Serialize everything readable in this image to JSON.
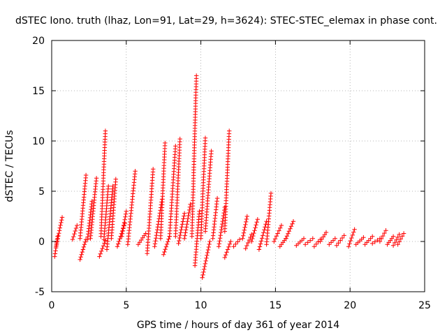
{
  "chart_data": {
    "type": "scatter",
    "title": "dSTEC Iono. truth (lhaz, Lon=91, Lat=29, h=3624): STEC-STEC_elemax in phase cont.",
    "xlabel": "GPS time / hours of day 361 of year 2014",
    "ylabel": "dSTEC  / TECUs",
    "xlim": [
      0,
      25
    ],
    "ylim": [
      -5,
      20
    ],
    "x_ticks": [
      0,
      5,
      10,
      15,
      20,
      25
    ],
    "y_ticks": [
      -5,
      0,
      5,
      10,
      15,
      20
    ],
    "x_tick_labels": [
      "0",
      "5",
      "10",
      "15",
      "20",
      "25"
    ],
    "y_tick_labels": [
      "-5",
      "0",
      "5",
      "10",
      "15",
      "20"
    ],
    "grid": true,
    "marker": "+",
    "color": "#ff0000",
    "arcs": [
      {
        "x": [
          0.2,
          0.4
        ],
        "y": [
          -1.5,
          0.5
        ]
      },
      {
        "x": [
          0.3,
          0.7
        ],
        "y": [
          -0.5,
          2.4
        ]
      },
      {
        "x": [
          1.4,
          1.7
        ],
        "y": [
          0.2,
          1.6
        ]
      },
      {
        "x": [
          1.9,
          2.3
        ],
        "y": [
          -1.8,
          0.2
        ]
      },
      {
        "x": [
          1.9,
          2.3
        ],
        "y": [
          0.3,
          6.6
        ]
      },
      {
        "x": [
          2.4,
          2.7
        ],
        "y": [
          0.2,
          4.0
        ]
      },
      {
        "x": [
          2.6,
          3.0
        ],
        "y": [
          0.3,
          6.3
        ]
      },
      {
        "x": [
          3.2,
          3.6
        ],
        "y": [
          -1.5,
          0.1
        ]
      },
      {
        "x": [
          3.3,
          3.6
        ],
        "y": [
          0.5,
          11.0
        ]
      },
      {
        "x": [
          3.5,
          3.8
        ],
        "y": [
          0.2,
          5.5
        ]
      },
      {
        "x": [
          3.7,
          4.1
        ],
        "y": [
          -0.8,
          5.5
        ]
      },
      {
        "x": [
          4.0,
          4.3
        ],
        "y": [
          0.3,
          6.2
        ]
      },
      {
        "x": [
          4.4,
          4.9
        ],
        "y": [
          -0.5,
          1.8
        ]
      },
      {
        "x": [
          4.7,
          5.0
        ],
        "y": [
          0.5,
          3.0
        ]
      },
      {
        "x": [
          5.1,
          5.6
        ],
        "y": [
          -0.3,
          7.0
        ]
      },
      {
        "x": [
          5.8,
          6.3
        ],
        "y": [
          -0.3,
          0.8
        ]
      },
      {
        "x": [
          6.4,
          6.8
        ],
        "y": [
          -1.2,
          7.2
        ]
      },
      {
        "x": [
          6.9,
          7.4
        ],
        "y": [
          -0.5,
          4.2
        ]
      },
      {
        "x": [
          7.3,
          7.6
        ],
        "y": [
          0.3,
          9.8
        ]
      },
      {
        "x": [
          7.5,
          7.9
        ],
        "y": [
          -1.3,
          0.5
        ]
      },
      {
        "x": [
          7.9,
          8.3
        ],
        "y": [
          0.5,
          9.5
        ]
      },
      {
        "x": [
          8.3,
          8.6
        ],
        "y": [
          0.5,
          10.2
        ]
      },
      {
        "x": [
          8.5,
          8.9
        ],
        "y": [
          -0.2,
          2.8
        ]
      },
      {
        "x": [
          8.9,
          9.3
        ],
        "y": [
          0.3,
          3.7
        ]
      },
      {
        "x": [
          9.4,
          9.7
        ],
        "y": [
          0.5,
          16.5
        ]
      },
      {
        "x": [
          9.6,
          9.9
        ],
        "y": [
          -2.4,
          3.0
        ]
      },
      {
        "x": [
          10.0,
          10.3
        ],
        "y": [
          0.3,
          10.3
        ]
      },
      {
        "x": [
          10.1,
          10.6
        ],
        "y": [
          -3.6,
          0.0
        ]
      },
      {
        "x": [
          10.3,
          10.7
        ],
        "y": [
          1.0,
          9.0
        ]
      },
      {
        "x": [
          10.8,
          11.1
        ],
        "y": [
          0.3,
          4.3
        ]
      },
      {
        "x": [
          11.2,
          11.6
        ],
        "y": [
          -0.5,
          3.4
        ]
      },
      {
        "x": [
          11.6,
          11.9
        ],
        "y": [
          1.0,
          11.0
        ]
      },
      {
        "x": [
          11.6,
          12.0
        ],
        "y": [
          -1.6,
          0.0
        ]
      },
      {
        "x": [
          12.2,
          12.6
        ],
        "y": [
          -0.5,
          0.2
        ]
      },
      {
        "x": [
          12.8,
          13.1
        ],
        "y": [
          0.3,
          2.5
        ]
      },
      {
        "x": [
          13.0,
          13.4
        ],
        "y": [
          -0.7,
          0.7
        ]
      },
      {
        "x": [
          13.4,
          13.8
        ],
        "y": [
          0.0,
          2.2
        ]
      },
      {
        "x": [
          13.9,
          14.4
        ],
        "y": [
          -0.8,
          2.0
        ]
      },
      {
        "x": [
          14.4,
          14.7
        ],
        "y": [
          -0.3,
          4.8
        ]
      },
      {
        "x": [
          14.9,
          15.4
        ],
        "y": [
          0.0,
          1.6
        ]
      },
      {
        "x": [
          15.3,
          15.7
        ],
        "y": [
          -0.5,
          0.3
        ]
      },
      {
        "x": [
          15.7,
          16.2
        ],
        "y": [
          0.3,
          2.0
        ]
      },
      {
        "x": [
          16.4,
          16.9
        ],
        "y": [
          -0.4,
          0.3
        ]
      },
      {
        "x": [
          17.0,
          17.5
        ],
        "y": [
          -0.3,
          0.3
        ]
      },
      {
        "x": [
          17.6,
          18.0
        ],
        "y": [
          -0.5,
          0.2
        ]
      },
      {
        "x": [
          18.0,
          18.4
        ],
        "y": [
          0.0,
          0.9
        ]
      },
      {
        "x": [
          18.6,
          19.0
        ],
        "y": [
          -0.3,
          0.3
        ]
      },
      {
        "x": [
          19.1,
          19.6
        ],
        "y": [
          -0.4,
          0.6
        ]
      },
      {
        "x": [
          19.9,
          20.3
        ],
        "y": [
          -0.5,
          1.2
        ]
      },
      {
        "x": [
          20.4,
          20.9
        ],
        "y": [
          -0.3,
          0.4
        ]
      },
      {
        "x": [
          21.0,
          21.5
        ],
        "y": [
          -0.3,
          0.5
        ]
      },
      {
        "x": [
          21.5,
          22.0
        ],
        "y": [
          -0.2,
          0.3
        ]
      },
      {
        "x": [
          22.0,
          22.4
        ],
        "y": [
          0.0,
          1.1
        ]
      },
      {
        "x": [
          22.5,
          22.9
        ],
        "y": [
          -0.3,
          0.5
        ]
      },
      {
        "x": [
          22.9,
          23.3
        ],
        "y": [
          -0.4,
          0.7
        ]
      },
      {
        "x": [
          23.2,
          23.6
        ],
        "y": [
          -0.3,
          0.8
        ]
      }
    ]
  }
}
